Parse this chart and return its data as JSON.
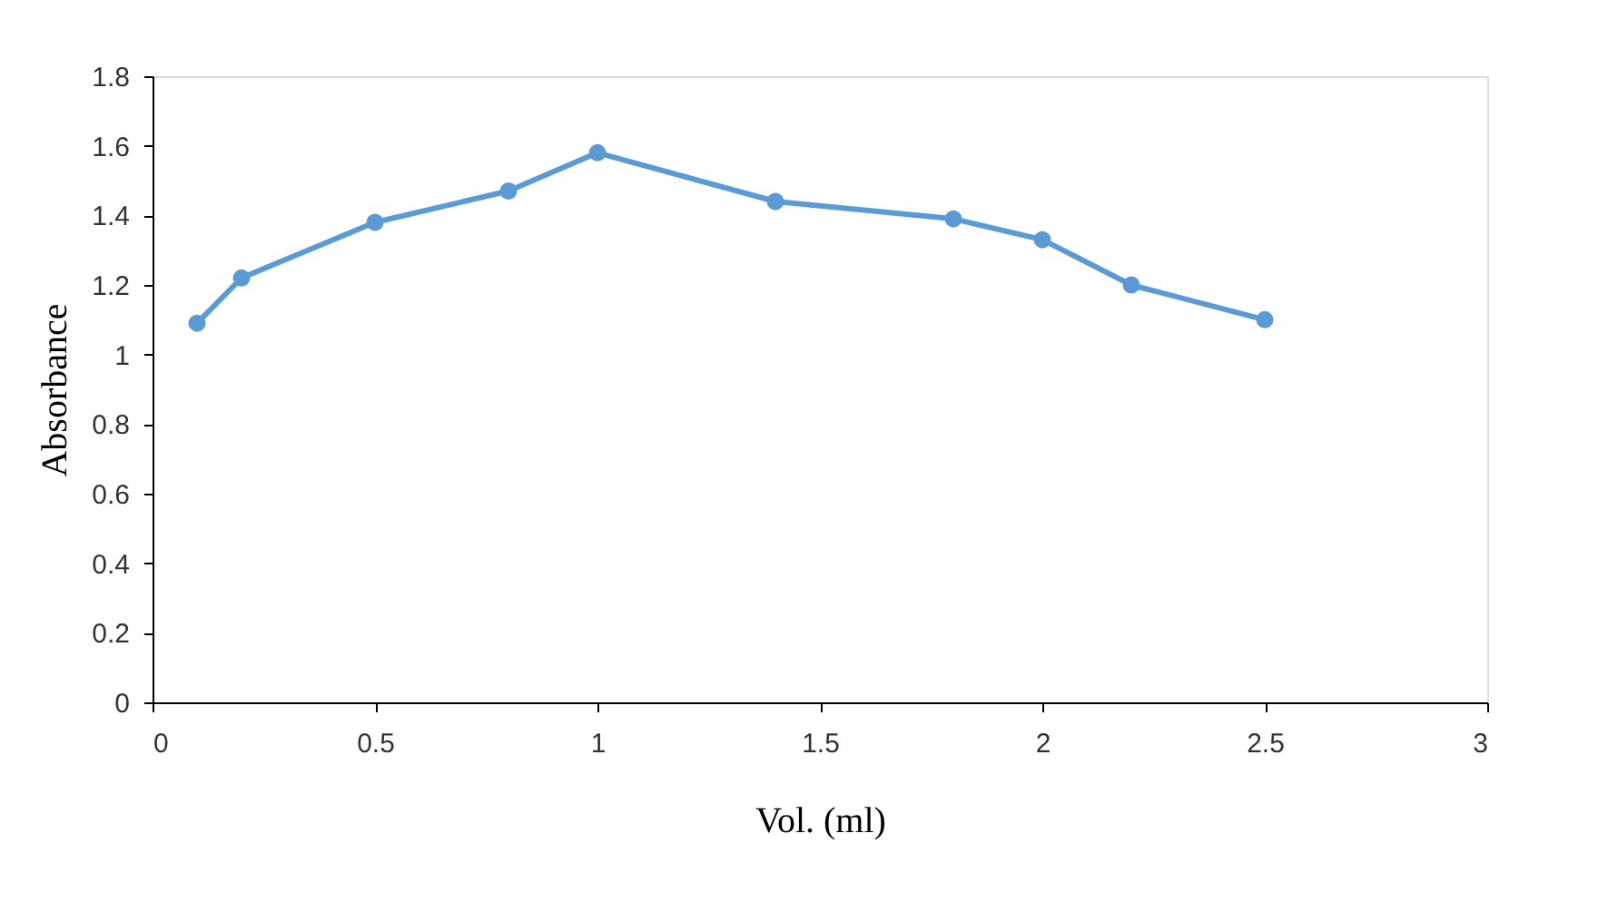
{
  "chart_data": {
    "type": "line",
    "xlabel": "Vol. (ml)",
    "ylabel": "Absorbance",
    "x": [
      0.1,
      0.2,
      0.5,
      0.8,
      1.0,
      1.4,
      1.8,
      2.0,
      2.2,
      2.5
    ],
    "series": [
      {
        "color": "#5b9bd5",
        "values": [
          1.09,
          1.22,
          1.38,
          1.47,
          1.58,
          1.44,
          1.39,
          1.33,
          1.2,
          1.1
        ]
      }
    ],
    "xlim": [
      0,
      3
    ],
    "xticks": [
      0,
      0.5,
      1,
      1.5,
      2,
      2.5,
      3
    ],
    "ylim": [
      0,
      1.8
    ],
    "yticks": [
      0,
      0.2,
      0.4,
      0.6,
      0.8,
      1,
      1.2,
      1.4,
      1.6,
      1.8
    ],
    "grid": false,
    "legend": false,
    "marker": "circle",
    "line_style": "solid"
  }
}
